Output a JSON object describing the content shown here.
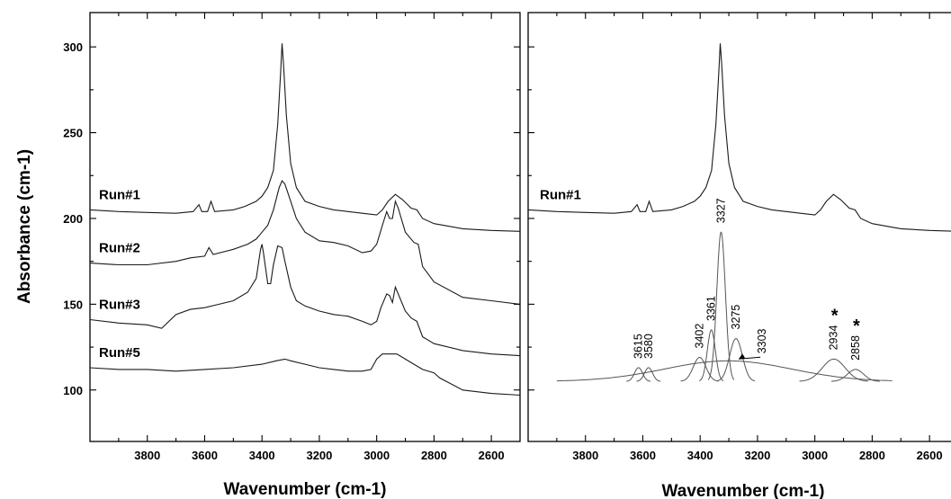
{
  "chart_data": [
    {
      "type": "line",
      "title": "",
      "xlabel": "Wavenumber (cm-1)",
      "ylabel": "Absorbance (cm-1)",
      "xlim": [
        4000,
        2500
      ],
      "ylim": [
        70,
        320
      ],
      "x_reversed": true,
      "x_ticks": [
        3800,
        3600,
        3400,
        3200,
        3000,
        2800,
        2600
      ],
      "y_ticks": [
        100,
        150,
        200,
        250,
        300
      ],
      "series": [
        {
          "name": "Run#1",
          "points": [
            [
              4000,
              205
            ],
            [
              3900,
              204
            ],
            [
              3800,
              203.5
            ],
            [
              3700,
              203
            ],
            [
              3640,
              204
            ],
            [
              3620,
              208
            ],
            [
              3610,
              204
            ],
            [
              3590,
              204
            ],
            [
              3578,
              210
            ],
            [
              3565,
              204
            ],
            [
              3500,
              205
            ],
            [
              3460,
              207
            ],
            [
              3420,
              210
            ],
            [
              3400,
              213
            ],
            [
              3380,
              218
            ],
            [
              3360,
              228
            ],
            [
              3345,
              255
            ],
            [
              3335,
              285
            ],
            [
              3330,
              302
            ],
            [
              3325,
              290
            ],
            [
              3315,
              260
            ],
            [
              3300,
              232
            ],
            [
              3280,
              218
            ],
            [
              3250,
              210
            ],
            [
              3200,
              207
            ],
            [
              3150,
              205
            ],
            [
              3100,
              204
            ],
            [
              3050,
              203
            ],
            [
              3000,
              202
            ],
            [
              2980,
              205
            ],
            [
              2960,
              210
            ],
            [
              2935,
              214
            ],
            [
              2910,
              211
            ],
            [
              2880,
              206
            ],
            [
              2860,
              205
            ],
            [
              2840,
              200
            ],
            [
              2800,
              197
            ],
            [
              2700,
              194
            ],
            [
              2600,
              193
            ],
            [
              2500,
              192.5
            ]
          ]
        },
        {
          "name": "Run#2",
          "points": [
            [
              4000,
              174
            ],
            [
              3900,
              173
            ],
            [
              3800,
              173
            ],
            [
              3700,
              175
            ],
            [
              3650,
              177
            ],
            [
              3600,
              178
            ],
            [
              3585,
              183
            ],
            [
              3570,
              179
            ],
            [
              3500,
              182
            ],
            [
              3450,
              185
            ],
            [
              3420,
              188
            ],
            [
              3400,
              192
            ],
            [
              3380,
              196
            ],
            [
              3360,
              205
            ],
            [
              3340,
              218
            ],
            [
              3330,
              222
            ],
            [
              3320,
              220
            ],
            [
              3300,
              210
            ],
            [
              3280,
              200
            ],
            [
              3250,
              192
            ],
            [
              3200,
              187
            ],
            [
              3150,
              186
            ],
            [
              3100,
              184
            ],
            [
              3050,
              180
            ],
            [
              3020,
              181
            ],
            [
              3000,
              185
            ],
            [
              2980,
              196
            ],
            [
              2965,
              204
            ],
            [
              2955,
              200
            ],
            [
              2945,
              200
            ],
            [
              2935,
              210
            ],
            [
              2925,
              206
            ],
            [
              2900,
              192
            ],
            [
              2870,
              186
            ],
            [
              2855,
              185
            ],
            [
              2840,
              172
            ],
            [
              2800,
              163
            ],
            [
              2700,
              154
            ],
            [
              2600,
              152
            ],
            [
              2500,
              150
            ]
          ]
        },
        {
          "name": "Run#3",
          "points": [
            [
              4000,
              141
            ],
            [
              3900,
              139
            ],
            [
              3800,
              138
            ],
            [
              3750,
              136
            ],
            [
              3700,
              144
            ],
            [
              3650,
              147
            ],
            [
              3600,
              148
            ],
            [
              3550,
              150
            ],
            [
              3500,
              152
            ],
            [
              3450,
              157
            ],
            [
              3420,
              165
            ],
            [
              3405,
              182
            ],
            [
              3400,
              185
            ],
            [
              3395,
              180
            ],
            [
              3380,
              162
            ],
            [
              3370,
              162
            ],
            [
              3360,
              173
            ],
            [
              3345,
              184
            ],
            [
              3330,
              183
            ],
            [
              3320,
              175
            ],
            [
              3300,
              160
            ],
            [
              3280,
              152
            ],
            [
              3250,
              149
            ],
            [
              3200,
              146
            ],
            [
              3150,
              144
            ],
            [
              3100,
              143
            ],
            [
              3050,
              140
            ],
            [
              3020,
              138
            ],
            [
              3000,
              140
            ],
            [
              2985,
              148
            ],
            [
              2965,
              156
            ],
            [
              2955,
              155
            ],
            [
              2945,
              151
            ],
            [
              2935,
              160
            ],
            [
              2925,
              156
            ],
            [
              2900,
              146
            ],
            [
              2880,
              142
            ],
            [
              2860,
              140
            ],
            [
              2840,
              131
            ],
            [
              2800,
              127
            ],
            [
              2700,
              123
            ],
            [
              2600,
              121
            ],
            [
              2500,
              120
            ]
          ]
        },
        {
          "name": "Run#5",
          "points": [
            [
              4000,
              113
            ],
            [
              3900,
              112
            ],
            [
              3800,
              112
            ],
            [
              3700,
              111
            ],
            [
              3600,
              112
            ],
            [
              3500,
              113
            ],
            [
              3400,
              115
            ],
            [
              3350,
              117
            ],
            [
              3320,
              118
            ],
            [
              3300,
              117
            ],
            [
              3250,
              115
            ],
            [
              3200,
              113
            ],
            [
              3150,
              112
            ],
            [
              3100,
              111
            ],
            [
              3050,
              111
            ],
            [
              3020,
              112
            ],
            [
              3000,
              118
            ],
            [
              2980,
              121
            ],
            [
              2960,
              121
            ],
            [
              2930,
              121
            ],
            [
              2900,
              118
            ],
            [
              2870,
              115
            ],
            [
              2840,
              112
            ],
            [
              2800,
              110
            ],
            [
              2780,
              107
            ],
            [
              2700,
              100
            ],
            [
              2600,
              98
            ],
            [
              2500,
              97
            ]
          ]
        }
      ]
    },
    {
      "type": "line",
      "title": "",
      "xlabel": "Wavenumber (cm-1)",
      "xlim": [
        4000,
        2500
      ],
      "ylim": [
        70,
        320
      ],
      "x_reversed": true,
      "x_ticks": [
        3800,
        3600,
        3400,
        3200,
        3000,
        2800,
        2600
      ],
      "y_ticks": [
        100,
        150,
        200,
        250,
        300
      ],
      "series": [
        {
          "name": "Run#1",
          "points": [
            [
              4000,
              205
            ],
            [
              3900,
              204
            ],
            [
              3800,
              203.5
            ],
            [
              3700,
              203
            ],
            [
              3640,
              204
            ],
            [
              3620,
              208
            ],
            [
              3610,
              204
            ],
            [
              3590,
              204
            ],
            [
              3578,
              210
            ],
            [
              3565,
              204
            ],
            [
              3500,
              205
            ],
            [
              3460,
              207
            ],
            [
              3420,
              210
            ],
            [
              3400,
              213
            ],
            [
              3380,
              218
            ],
            [
              3360,
              228
            ],
            [
              3345,
              255
            ],
            [
              3335,
              285
            ],
            [
              3330,
              302
            ],
            [
              3325,
              290
            ],
            [
              3315,
              260
            ],
            [
              3300,
              232
            ],
            [
              3280,
              218
            ],
            [
              3250,
              210
            ],
            [
              3200,
              207
            ],
            [
              3150,
              205
            ],
            [
              3100,
              204
            ],
            [
              3050,
              203
            ],
            [
              3000,
              202
            ],
            [
              2980,
              205
            ],
            [
              2960,
              210
            ],
            [
              2935,
              214
            ],
            [
              2910,
              211
            ],
            [
              2880,
              206
            ],
            [
              2860,
              205
            ],
            [
              2840,
              200
            ],
            [
              2800,
              197
            ],
            [
              2700,
              194
            ],
            [
              2600,
              193
            ],
            [
              2500,
              192.5
            ]
          ]
        }
      ],
      "fit_baseline": 105,
      "fit_range": [
        3900,
        2730
      ],
      "fitted_components": [
        {
          "label": "3615",
          "center": 3615,
          "height": 8,
          "width": 14,
          "marked": false
        },
        {
          "label": "3580",
          "center": 3580,
          "height": 8,
          "width": 14,
          "marked": false
        },
        {
          "label": "3402",
          "center": 3402,
          "height": 14,
          "width": 22,
          "marked": false
        },
        {
          "label": "3361",
          "center": 3361,
          "height": 30,
          "width": 14,
          "marked": false
        },
        {
          "label": "3327",
          "center": 3327,
          "height": 87,
          "width": 15,
          "marked": false
        },
        {
          "label": "3275",
          "center": 3275,
          "height": 25,
          "width": 22,
          "marked": false
        },
        {
          "label": "3303",
          "center": 3303,
          "height": 12,
          "width": 220,
          "marked": false
        },
        {
          "label": "2934",
          "center": 2934,
          "height": 13,
          "width": 40,
          "marked": true
        },
        {
          "label": "2858",
          "center": 2858,
          "height": 7,
          "width": 28,
          "marked": true
        }
      ]
    }
  ]
}
